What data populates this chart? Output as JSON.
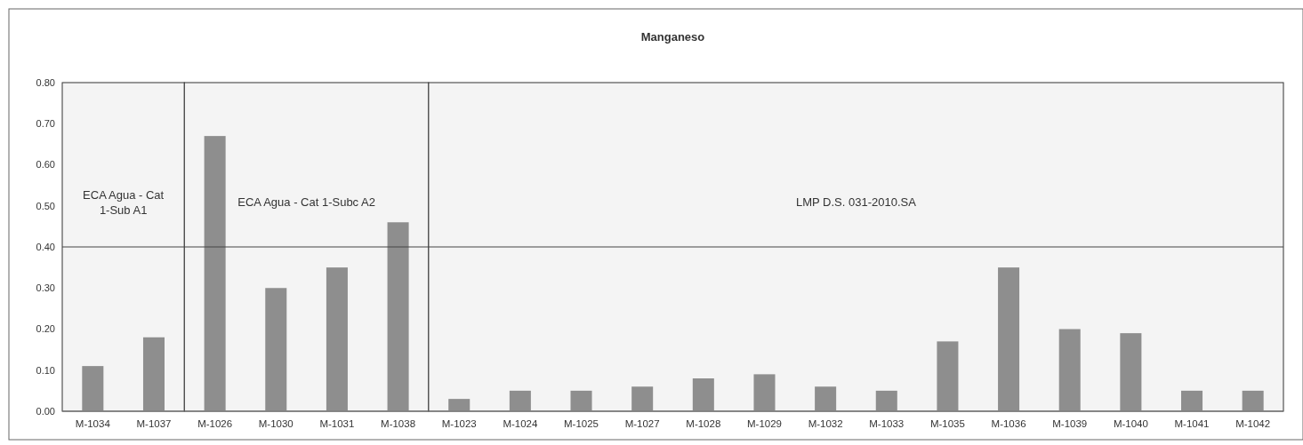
{
  "chart_data": {
    "type": "bar",
    "title": "Manganeso",
    "categories": [
      "M-1034",
      "M-1037",
      "M-1026",
      "M-1030",
      "M-1031",
      "M-1038",
      "M-1023",
      "M-1024",
      "M-1025",
      "M-1027",
      "M-1028",
      "M-1029",
      "M-1032",
      "M-1033",
      "M-1035",
      "M-1036",
      "M-1039",
      "M-1040",
      "M-1041",
      "M-1042"
    ],
    "values": [
      0.11,
      0.18,
      0.67,
      0.3,
      0.35,
      0.46,
      0.03,
      0.05,
      0.05,
      0.06,
      0.08,
      0.09,
      0.06,
      0.05,
      0.17,
      0.35,
      0.2,
      0.19,
      0.05,
      0.05
    ],
    "color": "#8e8e8e",
    "ylim": [
      0,
      0.8
    ],
    "yticks": [
      {
        "value": 0,
        "label": "0.00"
      },
      {
        "value": 0.1,
        "label": "0.10"
      },
      {
        "value": 0.2,
        "label": "0.20"
      },
      {
        "value": 0.3,
        "label": "0.30"
      },
      {
        "value": 0.4,
        "label": "0.40"
      },
      {
        "value": 0.5,
        "label": "0.50"
      },
      {
        "value": 0.6,
        "label": "0.60"
      },
      {
        "value": 0.7,
        "label": "0.70"
      },
      {
        "value": 0.8,
        "label": "0.80"
      }
    ],
    "grid": false,
    "ref_lines": [
      {
        "axis": "y",
        "value": 0.4,
        "color": "#444444"
      }
    ],
    "bands": [
      {
        "axis": "x",
        "from": "M-1034",
        "to": "M-1037",
        "label": "ECA Agua - Cat 1-Sub A1",
        "color": "#f4f4f4"
      },
      {
        "axis": "x",
        "from": "M-1026",
        "to": "M-1038",
        "label": "ECA Agua - Cat 1-Subc A2",
        "color": "#f4f4f4"
      },
      {
        "axis": "x",
        "from": "M-1023",
        "to": "M-1042",
        "label": "LMP D.S. 031-2010.SA",
        "color": "#f4f4f4"
      }
    ]
  }
}
